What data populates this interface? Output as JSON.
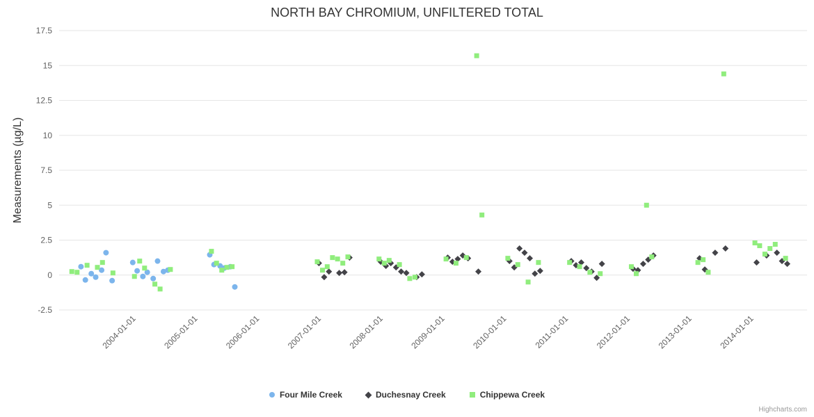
{
  "credits": "Highcharts.com",
  "chart_data": {
    "type": "scatter",
    "title": "NORTH BAY CHROMIUM, UNFILTERED TOTAL",
    "xlabel": "",
    "ylabel": "Measurements (µg/L)",
    "ylim": [
      -2.5,
      17.5
    ],
    "y_ticks": [
      -2.5,
      0,
      2.5,
      5,
      7.5,
      10,
      12.5,
      15,
      17.5
    ],
    "x_ticks": [
      "2004-01-01",
      "2005-01-01",
      "2006-01-01",
      "2007-01-01",
      "2008-01-01",
      "2009-01-01",
      "2010-01-01",
      "2011-01-01",
      "2012-01-01",
      "2013-01-01",
      "2014-01-01"
    ],
    "x_range": [
      "2002-11-01",
      "2014-12-10"
    ],
    "grid": "horizontal",
    "legend_position": "bottom-center",
    "series": [
      {
        "name": "Four Mile Creek",
        "color": "#7cb5ec",
        "marker": "circle",
        "points": [
          [
            "2003-03-10",
            0.6
          ],
          [
            "2003-04-05",
            -0.35
          ],
          [
            "2003-05-10",
            0.1
          ],
          [
            "2003-06-05",
            -0.15
          ],
          [
            "2003-07-10",
            0.35
          ],
          [
            "2003-08-05",
            1.6
          ],
          [
            "2003-09-10",
            -0.4
          ],
          [
            "2004-01-10",
            0.9
          ],
          [
            "2004-02-05",
            0.3
          ],
          [
            "2004-03-10",
            -0.1
          ],
          [
            "2004-04-05",
            0.2
          ],
          [
            "2004-05-10",
            -0.25
          ],
          [
            "2004-06-05",
            1.0
          ],
          [
            "2004-07-10",
            0.25
          ],
          [
            "2004-08-05",
            0.35
          ],
          [
            "2005-04-10",
            1.45
          ],
          [
            "2005-05-05",
            0.75
          ],
          [
            "2005-06-10",
            0.65
          ],
          [
            "2005-07-05",
            0.5
          ],
          [
            "2005-08-10",
            0.6
          ],
          [
            "2005-09-05",
            -0.85
          ]
        ]
      },
      {
        "name": "Duchesnay Creek",
        "color": "#434348",
        "marker": "diamond",
        "points": [
          [
            "2007-01-15",
            0.85
          ],
          [
            "2007-02-15",
            -0.15
          ],
          [
            "2007-03-15",
            0.25
          ],
          [
            "2007-05-15",
            0.15
          ],
          [
            "2007-06-15",
            0.2
          ],
          [
            "2007-07-15",
            1.25
          ],
          [
            "2008-01-15",
            0.95
          ],
          [
            "2008-02-15",
            0.65
          ],
          [
            "2008-03-15",
            0.85
          ],
          [
            "2008-04-15",
            0.55
          ],
          [
            "2008-05-15",
            0.25
          ],
          [
            "2008-06-15",
            0.15
          ],
          [
            "2008-08-15",
            -0.15
          ],
          [
            "2008-09-15",
            0.05
          ],
          [
            "2009-02-15",
            1.25
          ],
          [
            "2009-03-15",
            0.95
          ],
          [
            "2009-04-15",
            1.15
          ],
          [
            "2009-05-15",
            1.4
          ],
          [
            "2009-06-15",
            1.2
          ],
          [
            "2009-08-15",
            0.25
          ],
          [
            "2010-02-15",
            1.0
          ],
          [
            "2010-03-15",
            0.55
          ],
          [
            "2010-04-15",
            1.9
          ],
          [
            "2010-05-15",
            1.6
          ],
          [
            "2010-06-15",
            1.2
          ],
          [
            "2010-07-15",
            0.1
          ],
          [
            "2010-08-15",
            0.3
          ],
          [
            "2011-02-15",
            1.0
          ],
          [
            "2011-03-15",
            0.7
          ],
          [
            "2011-04-15",
            0.9
          ],
          [
            "2011-05-15",
            0.5
          ],
          [
            "2011-06-15",
            0.25
          ],
          [
            "2011-07-15",
            -0.2
          ],
          [
            "2011-08-15",
            0.8
          ],
          [
            "2012-02-15",
            0.45
          ],
          [
            "2012-03-15",
            0.35
          ],
          [
            "2012-04-15",
            0.8
          ],
          [
            "2012-05-15",
            1.1
          ],
          [
            "2012-06-15",
            1.4
          ],
          [
            "2013-03-15",
            1.2
          ],
          [
            "2013-04-15",
            0.4
          ],
          [
            "2013-06-15",
            1.6
          ],
          [
            "2013-08-15",
            1.9
          ],
          [
            "2014-02-15",
            0.9
          ],
          [
            "2014-04-15",
            1.4
          ],
          [
            "2014-06-15",
            1.6
          ],
          [
            "2014-07-15",
            1.0
          ],
          [
            "2014-08-15",
            0.8
          ]
        ]
      },
      {
        "name": "Chippewa Creek",
        "color": "#90ed7d",
        "marker": "square",
        "points": [
          [
            "2003-01-15",
            0.25
          ],
          [
            "2003-02-15",
            0.2
          ],
          [
            "2003-04-15",
            0.7
          ],
          [
            "2003-06-15",
            0.55
          ],
          [
            "2003-07-15",
            0.9
          ],
          [
            "2003-09-15",
            0.15
          ],
          [
            "2004-01-20",
            -0.1
          ],
          [
            "2004-02-20",
            1.0
          ],
          [
            "2004-03-20",
            0.5
          ],
          [
            "2004-05-20",
            -0.65
          ],
          [
            "2004-06-20",
            -1.0
          ],
          [
            "2004-08-20",
            0.4
          ],
          [
            "2005-04-20",
            1.7
          ],
          [
            "2005-05-20",
            0.85
          ],
          [
            "2005-06-20",
            0.35
          ],
          [
            "2005-07-20",
            0.55
          ],
          [
            "2005-08-20",
            0.6
          ],
          [
            "2007-01-05",
            0.95
          ],
          [
            "2007-02-05",
            0.35
          ],
          [
            "2007-03-05",
            0.6
          ],
          [
            "2007-04-05",
            1.25
          ],
          [
            "2007-05-05",
            1.15
          ],
          [
            "2007-06-05",
            0.85
          ],
          [
            "2007-07-05",
            1.3
          ],
          [
            "2008-01-05",
            1.15
          ],
          [
            "2008-02-05",
            0.85
          ],
          [
            "2008-03-05",
            1.05
          ],
          [
            "2008-05-05",
            0.75
          ],
          [
            "2008-07-05",
            -0.25
          ],
          [
            "2008-08-05",
            -0.15
          ],
          [
            "2009-02-05",
            1.15
          ],
          [
            "2009-04-05",
            0.85
          ],
          [
            "2009-06-05",
            1.25
          ],
          [
            "2009-08-05",
            15.7
          ],
          [
            "2009-09-05",
            4.3
          ],
          [
            "2010-02-05",
            1.2
          ],
          [
            "2010-04-05",
            0.75
          ],
          [
            "2010-06-05",
            -0.5
          ],
          [
            "2010-08-05",
            0.9
          ],
          [
            "2011-02-05",
            0.9
          ],
          [
            "2011-04-05",
            0.6
          ],
          [
            "2011-06-05",
            0.2
          ],
          [
            "2011-08-05",
            0.1
          ],
          [
            "2012-02-05",
            0.6
          ],
          [
            "2012-03-05",
            0.1
          ],
          [
            "2012-05-05",
            5.0
          ],
          [
            "2012-06-05",
            1.3
          ],
          [
            "2013-03-05",
            0.9
          ],
          [
            "2013-04-05",
            1.1
          ],
          [
            "2013-05-05",
            0.2
          ],
          [
            "2013-08-05",
            14.4
          ],
          [
            "2014-02-05",
            2.3
          ],
          [
            "2014-03-05",
            2.1
          ],
          [
            "2014-04-05",
            1.5
          ],
          [
            "2014-05-05",
            1.9
          ],
          [
            "2014-06-05",
            2.2
          ],
          [
            "2014-08-05",
            1.2
          ]
        ]
      }
    ]
  }
}
